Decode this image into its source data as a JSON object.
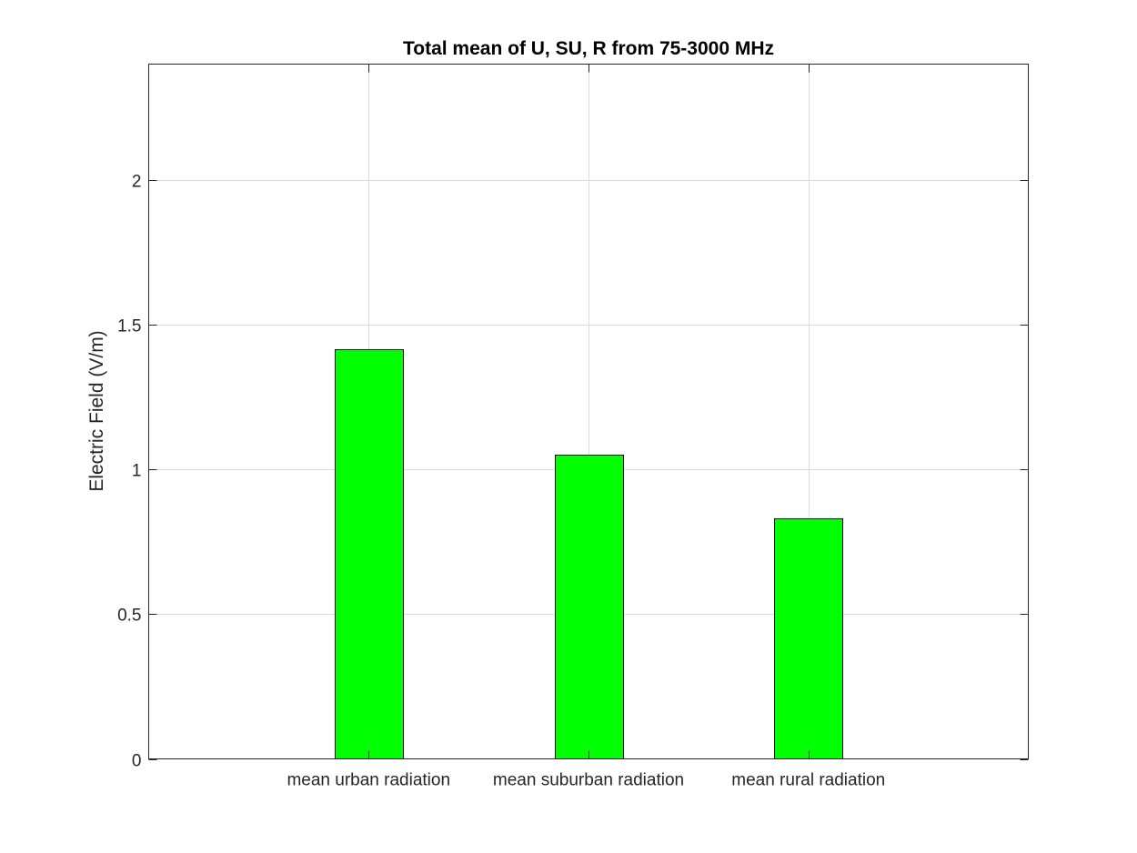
{
  "chart_data": {
    "type": "bar",
    "title": "Total mean of U, SU, R from 75-3000 MHz",
    "xlabel": "",
    "ylabel": "Electric Field (V/m)",
    "categories": [
      "mean urban radiation",
      "mean suburban radiation",
      "mean rural radiation"
    ],
    "values": [
      1.415,
      1.05,
      0.83
    ],
    "ylim": [
      0,
      2.4
    ],
    "yticks": [
      0,
      0.5,
      1,
      1.5,
      2
    ],
    "ytick_labels": [
      "0",
      "0.5",
      "1",
      "1.5",
      "2"
    ],
    "grid": true,
    "bar_color": "#00ff00",
    "bar_edge_color": "#000000"
  }
}
